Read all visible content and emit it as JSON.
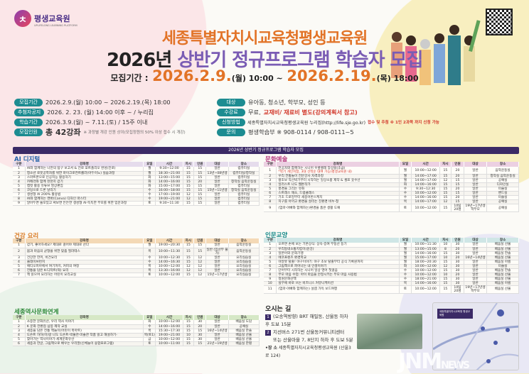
{
  "header": {
    "logo_text": "평생교육원",
    "logo_small": "UPLIFELONG LEARNING PLATFORM",
    "title": "세종특별자치시교육청평생교육원",
    "year": "2026년",
    "subtitle": "상반기 정규프로그램 학습자 모집",
    "period_label": "모집기간 :",
    "date_start": "2026.2.9.",
    "date_start_suffix": "(월) 10:00 ~",
    "date_end": "2026.2.19.",
    "date_end_suffix": "(목) 18:00"
  },
  "info_left": [
    {
      "label": "모집기간",
      "value": "2026.2.9.(월) 10:00 ~ 2026.2.19.(목) 18:00"
    },
    {
      "label": "추첨자공지",
      "value": "2026. 2. 23. (월) 14:00 이후 ~ / 누리집"
    },
    {
      "label": "학습기간",
      "value": "2026.3.9.(월) ~ 7.11.(토) / 15주 이내"
    },
    {
      "label": "모집인원",
      "value": "총 42강좌",
      "note": "※ 과정별 개강 인원 상이(모집정원의 50% 이상 접수 시 개강)"
    }
  ],
  "info_right": [
    {
      "label": "대상",
      "value": "유아동, 청소년, 학부모, 성인 등"
    },
    {
      "label": "수강료",
      "value": "무료,",
      "red": "교재비/ 재료비 별도(강의계획서 참고)"
    },
    {
      "label": "신청방법",
      "value": "세종특별자치시교육청평생교육원 누리집(http://life.sje.go.kr)",
      "red": "접수 및 추첨 ※ 1인 2과목 까지 신청 가능"
    },
    {
      "label": "문의",
      "value": "평생학습부 ※ 908-0114 / 908-0111~5"
    }
  ],
  "banner": "2026년 상반기 정규프로그램 학습자 모집",
  "columns": [
    "구분",
    "강좌명",
    "요일",
    "시간",
    "차시",
    "인원",
    "대상",
    "장소"
  ],
  "sections": {
    "ai": {
      "title": "AI 디지털",
      "color": "#1f5fa8",
      "head": "#e6dcec",
      "rows": [
        [
          "1",
          "AI와 함께하는 나만의 탐구 보고서 & 진로 포트폴리오 완성(진로)",
          "월",
          "9:30~12:00",
          "15",
          "15",
          "일반",
          "컴퓨터실"
        ],
        [
          "2",
          "청소년 로봇공학자를 위한 마이크로컨트롤러(아두이노) 실습과정",
          "월",
          "18:30~21:00",
          "15",
          "15",
          "13년~08년생",
          "컴퓨터실/창작실"
        ],
        [
          "3",
          "스마트폰으로 인공지능 활용하기",
          "화",
          "13:00~15:00",
          "15",
          "15",
          "일반",
          "컴퓨터실"
        ],
        [
          "4",
          "카메라와 함께 천천히 걷기",
          "화",
          "14:00~16:00",
          "15",
          "20",
          "일반",
          "창작실 음악운동실"
        ],
        [
          "5",
          "캡컷 활용 유튜브 영상편집",
          "화",
          "15:00~17:00",
          "15",
          "15",
          "일반",
          "컴퓨터실"
        ],
        [
          "6",
          "코딩으로 드론 날리기",
          "수",
          "16:00~18:00",
          "15",
          "15",
          "15년~11년생",
          "창작실 음악운동실"
        ],
        [
          "7",
          "생성형 AI 200% 활용법",
          "수",
          "17:00~19:00",
          "12",
          "15",
          "일반",
          "컴퓨터실"
        ],
        [
          "8",
          "AI와 함께하는 캔바(Canva) 디자인 마스터",
          "수",
          "19:00~21:00",
          "12",
          "15",
          "일반",
          "컴퓨터실"
        ],
        [
          "9",
          "알아두면 쓸모있고 써보면 든든한 생성형 AI-똑똑한 부모를 위한 입문과정",
          "토",
          "9:30~11:30",
          "15",
          "15",
          "일반",
          "컴퓨터실"
        ]
      ]
    },
    "health": {
      "title": "건강 요리",
      "color": "#d9761b",
      "head": "#f4d9b6",
      "rows": [
        [
          "1",
          "걷기, 좋아하세요? 제대로 걸어야 제대로 산다",
          "월",
          "19:00~20:30",
          "15",
          "15",
          "일반",
          "음악운동실"
        ],
        [
          "2",
          "몸과 마음의 균형을 위한 맞춤 필라테스",
          "목",
          "10:00~11:30",
          "15",
          "15",
          "일반 (임산부 불가)",
          "음악운동실"
        ],
        [
          "3",
          "건강한 한끼, 비건요리",
          "수",
          "10:00~12:30",
          "15",
          "12",
          "일반",
          "요리실습실"
        ],
        [
          "4",
          "올데이브런치",
          "수",
          "14:00~16:30",
          "15",
          "12",
          "일반",
          "요리실습실"
        ],
        [
          "5",
          "에티오피아에서 여기까지, 커피의 여정",
          "목",
          "10:00~12:00",
          "12",
          "12",
          "일반",
          "요리실습실"
        ],
        [
          "6",
          "전통을 담은 K-디저트(떡) 요리",
          "목",
          "13:30~16:00",
          "12",
          "12",
          "일반",
          "요리실습실"
        ],
        [
          "7",
          "책 읽으며 요리하는 어린이 요리교실",
          "토",
          "10:00~12:00",
          "15",
          "12",
          "15년~17년생",
          "요리실습실"
        ]
      ]
    },
    "history": {
      "title": "세종역사문화연계",
      "color": "#2f8a3a",
      "head": "#d6e8c6",
      "rows": [
        [
          "1",
          "소중한 문화유산, 우리 역사 이야기",
          "화",
          "10:00~12:00",
          "15",
          "30",
          "일반",
          "배움실 도담"
        ],
        [
          "2",
          "K 문화 전환점 삼봉 제작 교실",
          "수",
          "14:00~16:00",
          "15",
          "20",
          "일반",
          "공예실"
        ],
        [
          "3",
          "세종을 담은 전통 책놀이(어린이 북아트)",
          "목",
          "15:30~17:30",
          "15",
          "15",
          "16년~14년생",
          "배움실 한솔"
        ],
        [
          "4",
          "도슨트 하하(이)랑 나도 도슨트-박물관·미술관 작품 읽고 해설하기-",
          "목(토1)",
          "19:00~21:00",
          "10",
          "30",
          "일반",
          "배움실 산울"
        ],
        [
          "5",
          "찾아가는 역사이야기-세계문화유산",
          "금",
          "10:00~12:00",
          "15",
          "30",
          "일반",
          "배움실 산울"
        ],
        [
          "6",
          "세종과 한글, 그림책으로 배우는 우리말(신체놀이 융합프로그램)",
          "토",
          "10:00~11:00",
          "15",
          "15",
          "21년~19년생",
          "배움실 한별"
        ]
      ]
    },
    "culture": {
      "title": "문화예술",
      "color": "#b5377f",
      "head": "#ecd0e2",
      "rows": [
        [
          "1",
          "전공자와 함께하는 시니어 우쿨렐레 앙상블(초급)|*악기 개인지참, 3대 선착순 대여 가능(평생교육원 내)",
          "월",
          "10:00~12:00",
          "15",
          "20",
          "일반",
          "음악운동실"
        ],
        [
          "2",
          "우리 전통놀이 전문강사 자격과정",
          "월",
          "14:00~17:00",
          "15",
          "20",
          "일반",
          "창작실 음악운동실"
        ],
        [
          "3",
          "왕초보 직선박기부터 시작하는 일상소품 제작 & 셀프 옷수선",
          "월",
          "14:00~17:00",
          "12",
          "15",
          "일반",
          "공예실"
        ],
        [
          "4",
          "일러스트 나도 웹툰작가",
          "화",
          "14:00~16:00",
          "15",
          "15",
          "일반",
          "디자인실"
        ],
        [
          "5",
          "풍경을 그리는 유화",
          "수",
          "9:30~12:30",
          "15",
          "20",
          "일반",
          "미술실"
        ],
        [
          "6",
          "스트레스 해소, 드럼클래스",
          "수",
          "10:00~12:00",
          "15",
          "15",
          "일반",
          "밴드실"
        ],
        [
          "7",
          "기초 드로잉부터 세종어반스케치",
          "수",
          "14:00~16:00",
          "15",
          "20",
          "일반",
          "미술실"
        ],
        [
          "8",
          "지구를 아끼고 환경을 살리는 친환경 비누·청",
          "목",
          "14:00~17:00",
          "12",
          "15",
          "일반",
          "공예실"
        ],
        [
          "9",
          "(엄마·아빠와 함께하는)환경을 품은 생활 도예",
          "토",
          "10:00~12:00",
          "15",
          "10팀 20명",
          "19년~17년생 학부모",
          "공예실"
        ]
      ]
    },
    "humanities": {
      "title": "인문교양",
      "color": "#178a8a",
      "head": "#cfe6e6",
      "rows": [
        [
          "1",
          "오르면 손에 보는 기본상식: 상속·증여 부동산 등기",
          "월",
          "10:00~11:30",
          "10",
          "30",
          "일반",
          "배움실 산울"
        ],
        [
          "2",
          "우리동네소통지킴이(윤강)",
          "월",
          "13:00~15:00",
          "8",
          "20",
          "일반",
          "배움실 산울"
        ],
        [
          "3",
          "일본어와 문화기행",
          "월",
          "14:00~16:00",
          "15",
          "30",
          "일반",
          "배움실 한솔"
        ],
        [
          "4",
          "에코프렌즈 환경학교",
          "월",
          "15:00~17:00",
          "10",
          "20",
          "16년~14년생",
          "배움실 산울"
        ],
        [
          "5",
          "야알못 탈출! 야구이야기: 야구 초보 탈출부터 공식 기록원까지",
          "월",
          "18:00~20:30",
          "15",
          "30",
          "일반",
          "배움실 아름"
        ],
        [
          "6",
          "그림책으로 피어나는 내 인생이야기",
          "화",
          "10:00~12:00",
          "12",
          "30",
          "일반",
          "미술실"
        ],
        [
          "7",
          "단어부터 시작하는 시니어 일상 영어 첫걸음",
          "수",
          "10:00~12:00",
          "15",
          "30",
          "일반",
          "배움실 한솔"
        ],
        [
          "8",
          "부모 마음 수업: 아이 마음을 안정시키는 부모 마음 사용법",
          "수",
          "10:00~12:00",
          "10",
          "20",
          "일반",
          "배움실 산울"
        ],
        [
          "9",
          "정원문화산책",
          "수",
          "18:00~21:00",
          "15",
          "30",
          "일반",
          "배움실 산울"
        ],
        [
          "10",
          "실무에 바로 쓰는 비즈니스 커뮤니케이션",
          "목",
          "14:00~16:00",
          "15",
          "30",
          "일반",
          "배움실 아름"
        ],
        [
          "11",
          "(엄마·아빠와 함께하는) 설렘 가득 보드여행",
          "토",
          "10:00~12:00",
          "15",
          "10팀 20명",
          "19년~17년생 학부모",
          "배움실 산울"
        ]
      ]
    }
  },
  "directions": {
    "title": "오시는 길",
    "items": [
      "(오송역방향) BRT 해밀동, 산울동 하차 후 도보 15분",
      "지선버스 271번 산울동커뮤니티센터",
      "또는 산울마을 7, 8단지 하차 후 도보 5분"
    ],
    "place_label": "•장  소",
    "place": "세종특별자치시교육청평생교육원 (산울3로 124)",
    "map_label": "세종특별자치시교육청 평생교육원"
  },
  "watermark": {
    "main": "JNM",
    "sub": "NEWS"
  }
}
